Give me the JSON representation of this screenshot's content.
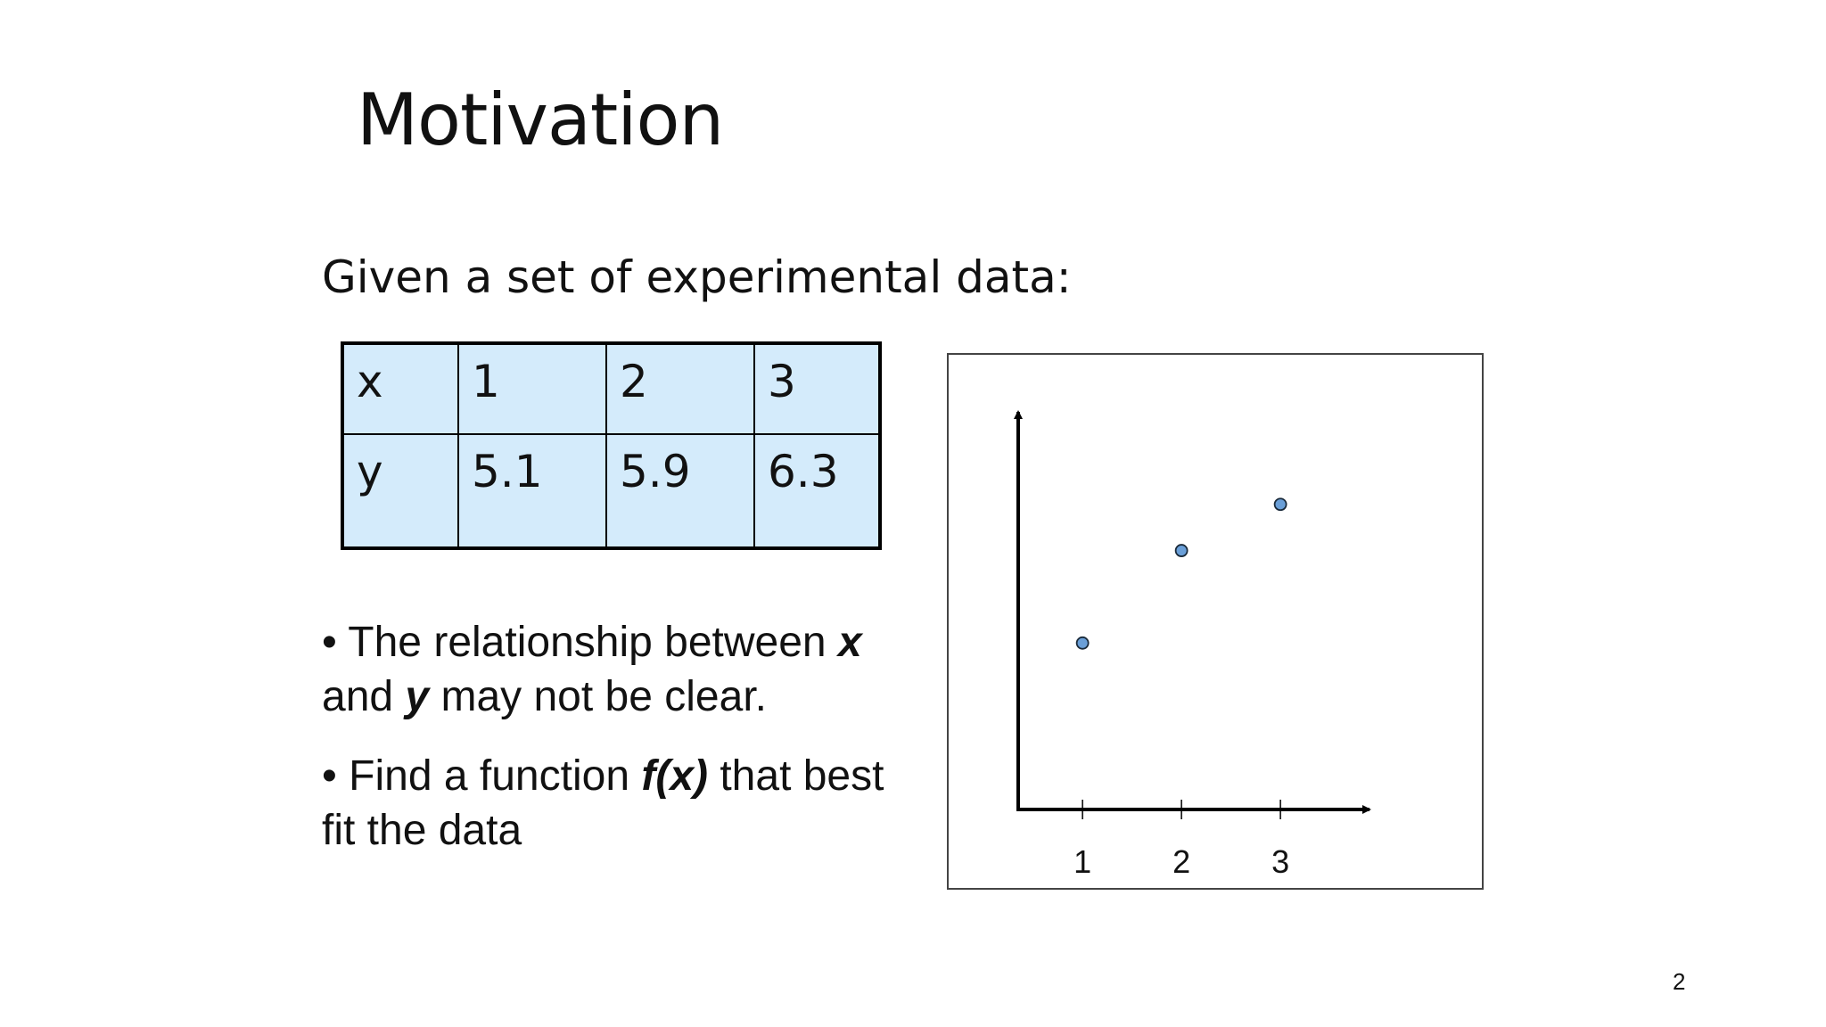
{
  "slide": {
    "title": "Motivation",
    "subtitle": "Given a set of experimental data:",
    "page_number": "2"
  },
  "table": {
    "rows": [
      [
        "x",
        "1",
        "2",
        "3"
      ],
      [
        "y",
        "5.1",
        "5.9",
        "6.3"
      ]
    ],
    "fill_color": "#d4ebfb",
    "border_color": "#000000"
  },
  "bullets": {
    "b1": {
      "marker": "•",
      "pre": " The relationship between ",
      "x": "x",
      "mid": " and ",
      "y": "y",
      "post": " may not be clear."
    },
    "b2": {
      "marker": "•",
      "pre": " Find a function ",
      "fx": "f(x)",
      "post": " that best fit the data"
    }
  },
  "chart_data": {
    "type": "scatter",
    "title": "",
    "xlabel": "",
    "ylabel": "",
    "x": [
      1,
      2,
      3
    ],
    "y": [
      5.1,
      5.9,
      6.3
    ],
    "x_tick_labels": [
      "1",
      "2",
      "3"
    ],
    "xlim": [
      0.35,
      3.9
    ],
    "ylim": [
      3.66,
      7.1
    ],
    "grid": false,
    "point_color": "#6a9fd8",
    "point_stroke": "#1a2a3a"
  }
}
